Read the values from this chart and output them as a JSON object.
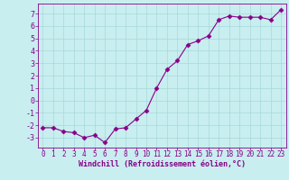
{
  "x": [
    0,
    1,
    2,
    3,
    4,
    5,
    6,
    7,
    8,
    9,
    10,
    11,
    12,
    13,
    14,
    15,
    16,
    17,
    18,
    19,
    20,
    21,
    22,
    23
  ],
  "y": [
    -2.2,
    -2.2,
    -2.5,
    -2.6,
    -3.0,
    -2.8,
    -3.4,
    -2.3,
    -2.2,
    -1.5,
    -0.8,
    1.0,
    2.5,
    3.2,
    4.5,
    4.8,
    5.2,
    6.5,
    6.8,
    6.7,
    6.7,
    6.7,
    6.5,
    7.3
  ],
  "line_color": "#880088",
  "marker": "D",
  "marker_size": 2.5,
  "bg_color": "#c8eef0",
  "grid_color": "#a8d8da",
  "xlabel": "Windchill (Refroidissement éolien,°C)",
  "xlabel_color": "#880088",
  "tick_color": "#880088",
  "ylim": [
    -3.8,
    7.8
  ],
  "xlim": [
    -0.5,
    23.5
  ],
  "yticks": [
    -3,
    -2,
    -1,
    0,
    1,
    2,
    3,
    4,
    5,
    6,
    7
  ],
  "xticks": [
    0,
    1,
    2,
    3,
    4,
    5,
    6,
    7,
    8,
    9,
    10,
    11,
    12,
    13,
    14,
    15,
    16,
    17,
    18,
    19,
    20,
    21,
    22,
    23
  ],
  "tick_fontsize": 5.5,
  "xlabel_fontsize": 6.0
}
